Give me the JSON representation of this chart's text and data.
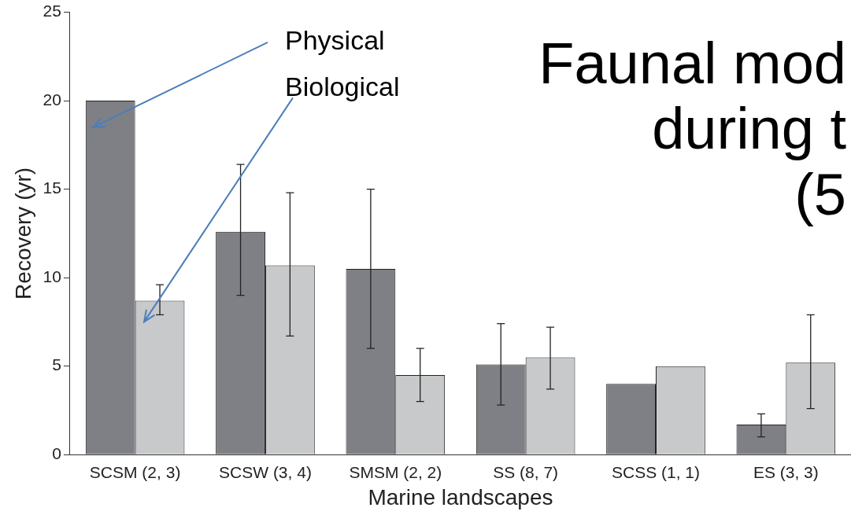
{
  "chart_data": {
    "type": "bar",
    "ylabel": "Recovery (yr)",
    "xlabel": "Marine landscapes",
    "categories": [
      "SCSM (2, 3)",
      "SCSW (3, 4)",
      "SMSM (2, 2)",
      "SS (8, 7)",
      "SCSS (1, 1)",
      "ES (3, 3)"
    ],
    "series": [
      {
        "name": "Physical",
        "color": "#7f8085",
        "values": [
          20,
          12.6,
          10.5,
          5.1,
          4.0,
          1.7
        ],
        "errors": [
          null,
          [
            9.0,
            16.4
          ],
          [
            6.0,
            15.0
          ],
          [
            2.8,
            7.4
          ],
          null,
          [
            1.0,
            2.3
          ]
        ]
      },
      {
        "name": "Biological",
        "color": "#c8c9cb",
        "values": [
          8.7,
          10.7,
          4.5,
          5.5,
          5.0,
          5.2
        ],
        "errors": [
          [
            7.9,
            9.6
          ],
          [
            6.7,
            14.8
          ],
          [
            3.0,
            6.0
          ],
          [
            3.7,
            7.2
          ],
          null,
          [
            2.6,
            7.9
          ]
        ]
      }
    ],
    "ylim": [
      0,
      25
    ],
    "yticks": [
      0,
      5,
      10,
      15,
      20,
      25
    ],
    "grid": false,
    "annotations": [
      "Faunal mod",
      "during t",
      "(5"
    ]
  }
}
